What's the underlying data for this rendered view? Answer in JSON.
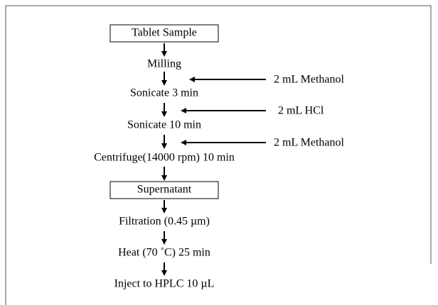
{
  "steps": [
    "Tablet Sample",
    "Milling",
    "Sonicate 3 min",
    "Sonicate 10 min",
    "Centrifuge(14000 rpm) 10 min",
    "Supernatant",
    "Filtration (0.45 µm)",
    "Heat (70 ˚C) 25 min",
    "Inject to HPLC 10 µL"
  ],
  "reagents": [
    "2 mL Methanol",
    "2 mL HCl",
    "2 mL Methanol"
  ]
}
